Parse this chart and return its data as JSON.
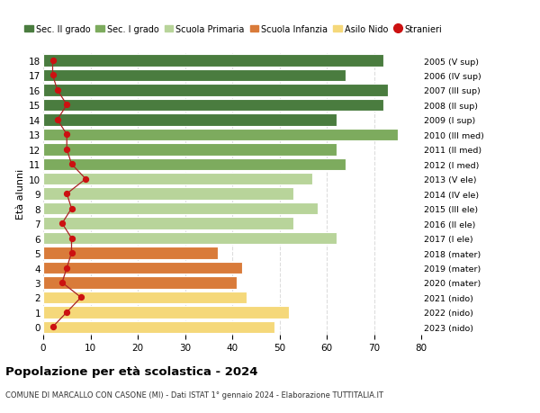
{
  "ages": [
    18,
    17,
    16,
    15,
    14,
    13,
    12,
    11,
    10,
    9,
    8,
    7,
    6,
    5,
    4,
    3,
    2,
    1,
    0
  ],
  "years": [
    "2005 (V sup)",
    "2006 (IV sup)",
    "2007 (III sup)",
    "2008 (II sup)",
    "2009 (I sup)",
    "2010 (III med)",
    "2011 (II med)",
    "2012 (I med)",
    "2013 (V ele)",
    "2014 (IV ele)",
    "2015 (III ele)",
    "2016 (II ele)",
    "2017 (I ele)",
    "2018 (mater)",
    "2019 (mater)",
    "2020 (mater)",
    "2021 (nido)",
    "2022 (nido)",
    "2023 (nido)"
  ],
  "bar_values": [
    72,
    64,
    73,
    72,
    62,
    75,
    62,
    64,
    57,
    53,
    58,
    53,
    62,
    37,
    42,
    41,
    43,
    52,
    49
  ],
  "bar_colors": [
    "#4a7c3f",
    "#4a7c3f",
    "#4a7c3f",
    "#4a7c3f",
    "#4a7c3f",
    "#7dab5e",
    "#7dab5e",
    "#7dab5e",
    "#b8d49a",
    "#b8d49a",
    "#b8d49a",
    "#b8d49a",
    "#b8d49a",
    "#d97b3a",
    "#d97b3a",
    "#d97b3a",
    "#f5d87a",
    "#f5d87a",
    "#f5d87a"
  ],
  "stranieri": [
    2,
    2,
    3,
    5,
    3,
    5,
    5,
    6,
    9,
    5,
    6,
    4,
    6,
    6,
    5,
    4,
    8,
    5,
    2
  ],
  "title": "Popolazione per età scolastica - 2024",
  "subtitle": "COMUNE DI MARCALLO CON CASONE (MI) - Dati ISTAT 1° gennaio 2024 - Elaborazione TUTTITALIA.IT",
  "ylabel_left": "Età alunni",
  "xlim": [
    0,
    80
  ],
  "xticks": [
    0,
    10,
    20,
    30,
    40,
    50,
    60,
    70,
    80
  ],
  "legend_labels": [
    "Sec. II grado",
    "Sec. I grado",
    "Scuola Primaria",
    "Scuola Infanzia",
    "Asilo Nido",
    "Stranieri"
  ],
  "legend_colors": [
    "#4a7c3f",
    "#7dab5e",
    "#b8d49a",
    "#d97b3a",
    "#f5d87a",
    "#cc1111"
  ],
  "bar_height": 0.82,
  "background_color": "#ffffff",
  "grid_color": "#dddddd",
  "stranieri_color": "#cc1111",
  "stranieri_line_color": "#aa2222"
}
